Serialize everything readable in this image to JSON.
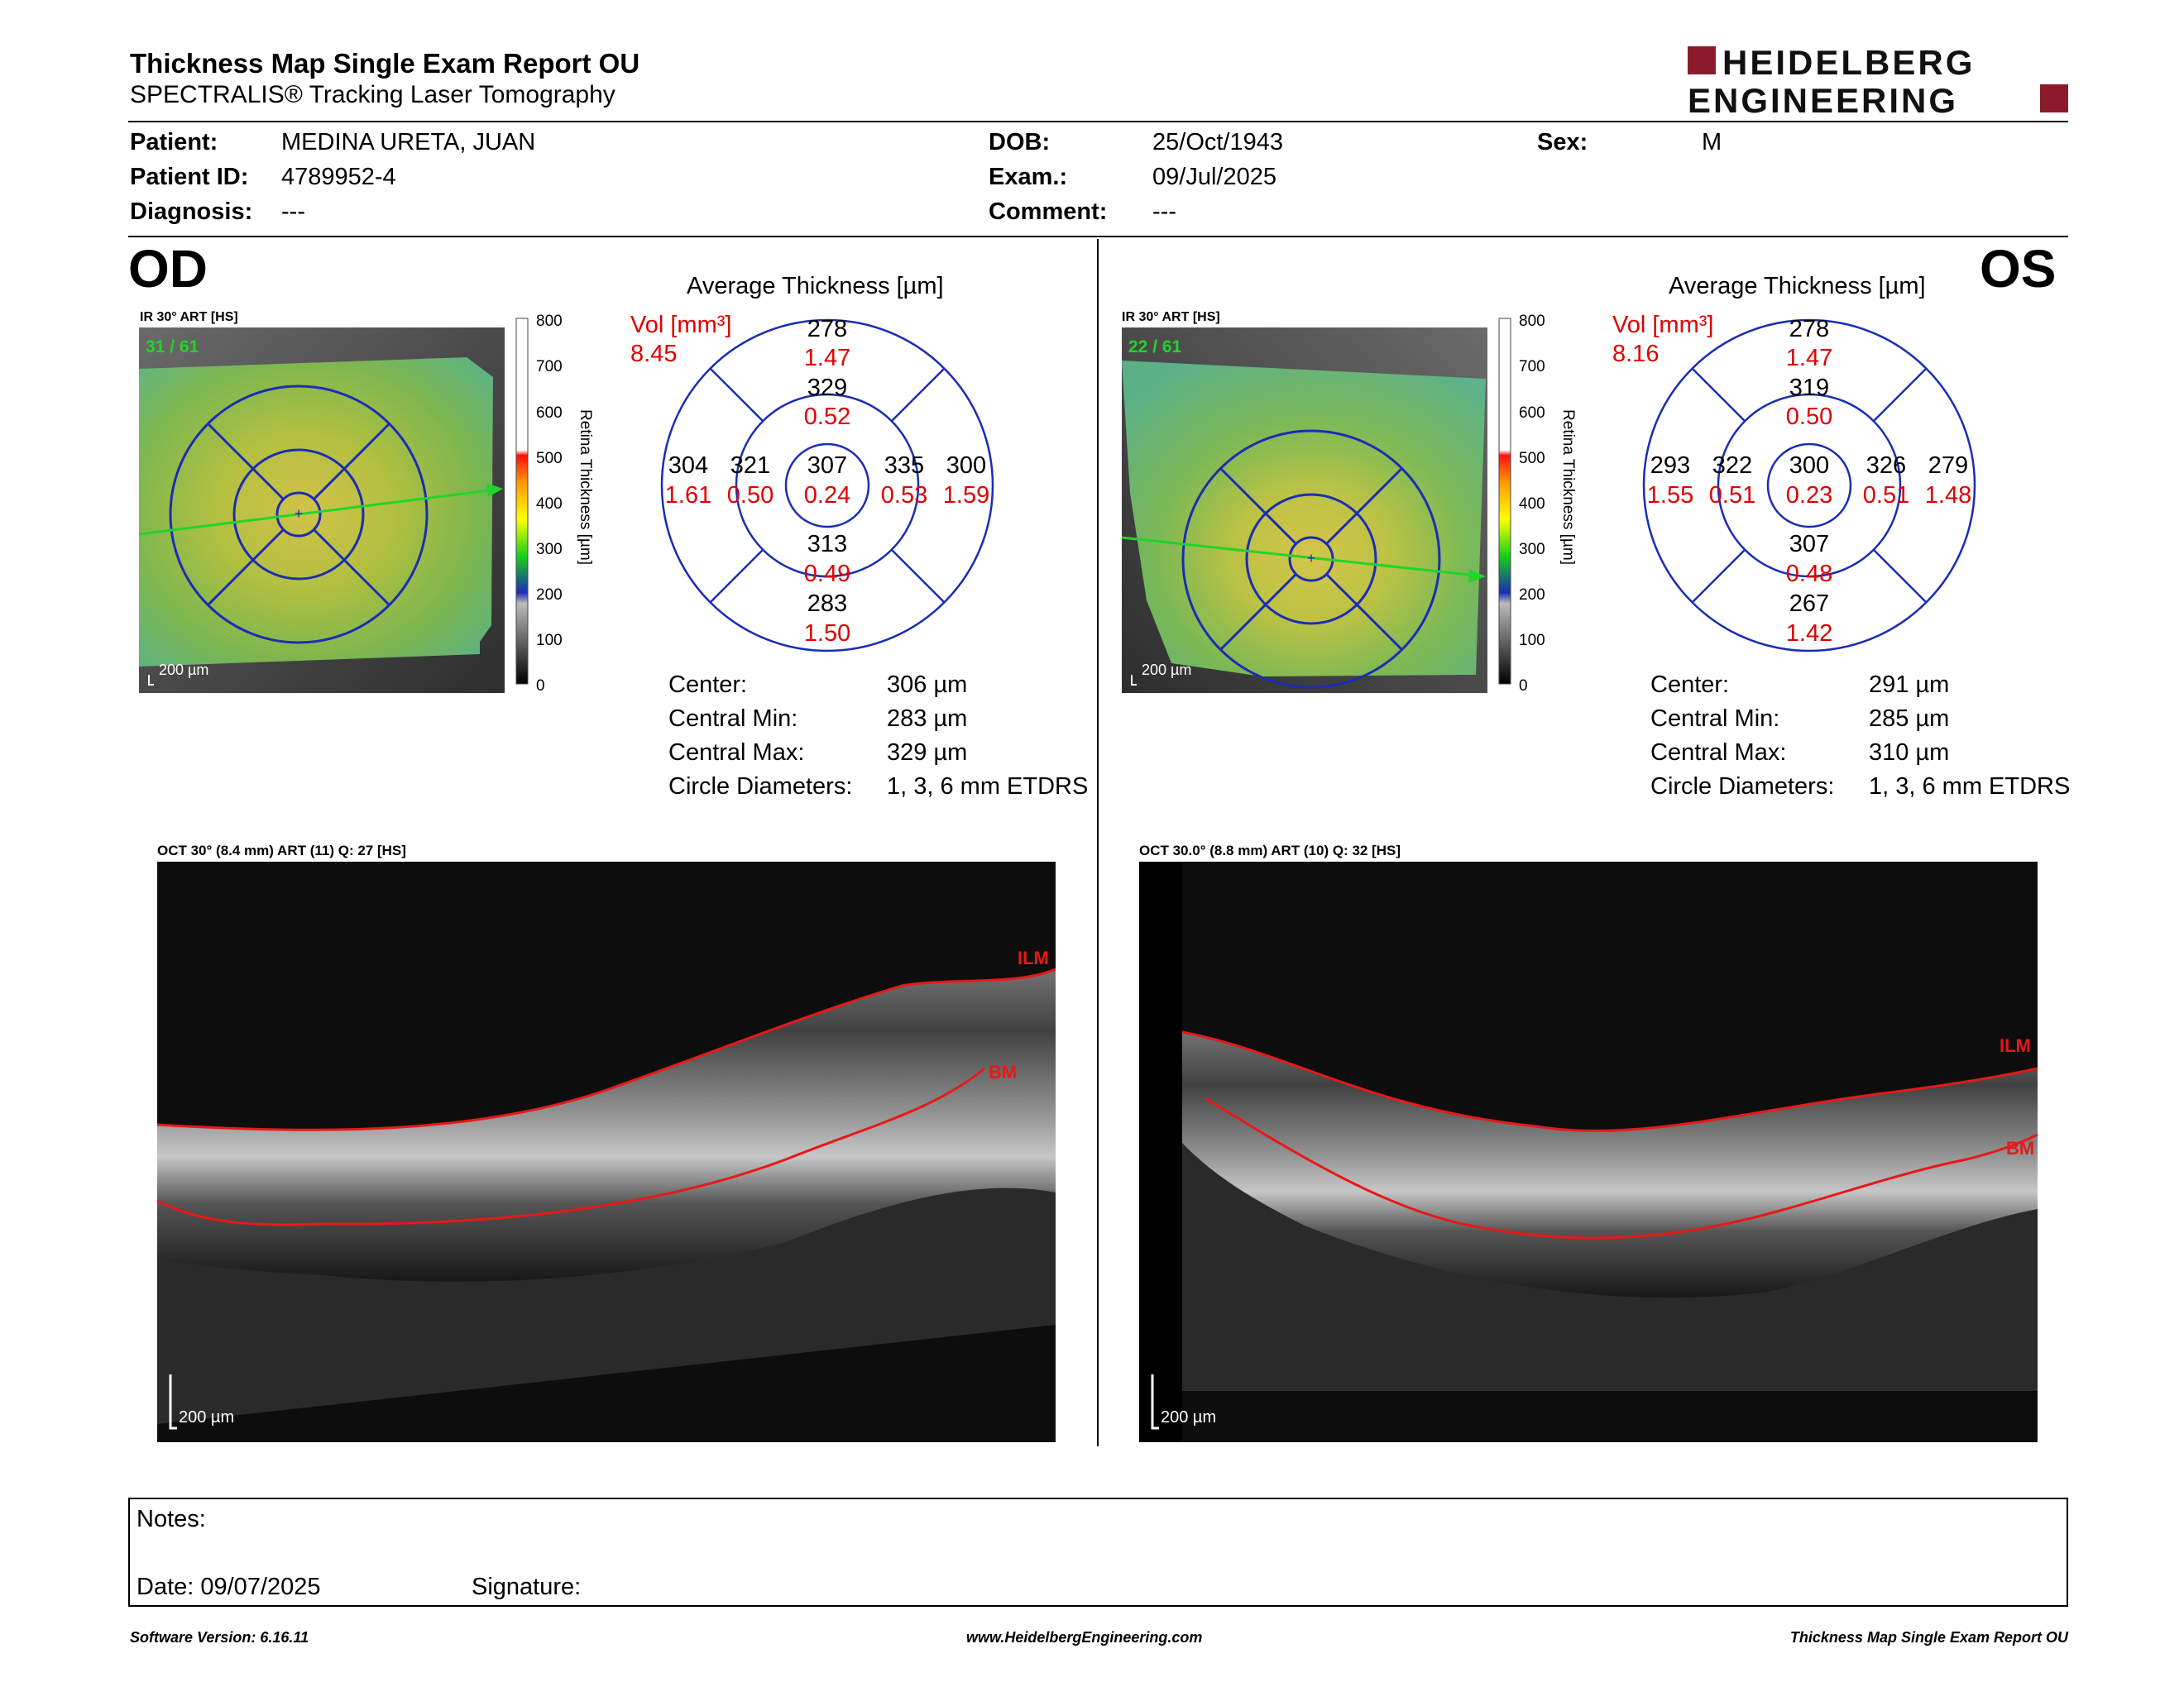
{
  "header": {
    "title": "Thickness Map Single Exam Report OU",
    "subtitle": "SPECTRALIS® Tracking Laser Tomography",
    "logo_line1": "HEIDELBERG",
    "logo_line2": "ENGINEERING",
    "brand_color": "#8b1a2b"
  },
  "patient": {
    "patient_label": "Patient:",
    "patient_value": "MEDINA URETA, JUAN",
    "id_label": "Patient ID:",
    "id_value": "4789952-4",
    "diagnosis_label": "Diagnosis:",
    "diagnosis_value": "---",
    "dob_label": "DOB:",
    "dob_value": "25/Oct/1943",
    "exam_label": "Exam.:",
    "exam_value": "09/Jul/2025",
    "comment_label": "Comment:",
    "comment_value": "---",
    "sex_label": "Sex:",
    "sex_value": "M"
  },
  "scale_labels": [
    "800",
    "700",
    "600",
    "500",
    "400",
    "300",
    "200",
    "100",
    "0"
  ],
  "scale_title": "Retina Thickness [µm]",
  "avg_title": "Average Thickness [µm]",
  "vol_label": "Vol [mm³]",
  "stats_labels": {
    "center": "Center:",
    "min": "Central Min:",
    "max": "Central Max:",
    "diam": "Circle Diameters:"
  },
  "od": {
    "eye": "OD",
    "ir_label": "IR 30° ART [HS]",
    "frame": "31 / 61",
    "scale_bar": "200 µm",
    "vol_total": "8.45",
    "sectors": {
      "outer_sup": {
        "t": "278",
        "v": "1.47"
      },
      "inner_sup": {
        "t": "329",
        "v": "0.52"
      },
      "outer_temp": {
        "t": "304",
        "v": "1.61"
      },
      "inner_temp": {
        "t": "321",
        "v": "0.50"
      },
      "center": {
        "t": "307",
        "v": "0.24"
      },
      "inner_nas": {
        "t": "335",
        "v": "0.53"
      },
      "outer_nas": {
        "t": "300",
        "v": "1.59"
      },
      "inner_inf": {
        "t": "313",
        "v": "0.49"
      },
      "outer_inf": {
        "t": "283",
        "v": "1.50"
      }
    },
    "stats": {
      "center": "306 µm",
      "min": "283 µm",
      "max": "329 µm",
      "diam": "1, 3, 6 mm ETDRS"
    },
    "oct_label": "OCT 30° (8.4 mm) ART (11) Q: 27 [HS]",
    "ilm": "ILM",
    "bm": "BM",
    "oct_scale": "200 µm"
  },
  "os": {
    "eye": "OS",
    "ir_label": "IR 30° ART [HS]",
    "frame": "22 / 61",
    "scale_bar": "200 µm",
    "vol_total": "8.16",
    "sectors": {
      "outer_sup": {
        "t": "278",
        "v": "1.47"
      },
      "inner_sup": {
        "t": "319",
        "v": "0.50"
      },
      "outer_temp": {
        "t": "293",
        "v": "1.55"
      },
      "inner_temp": {
        "t": "322",
        "v": "0.51"
      },
      "center": {
        "t": "300",
        "v": "0.23"
      },
      "inner_nas": {
        "t": "326",
        "v": "0.51"
      },
      "outer_nas": {
        "t": "279",
        "v": "1.48"
      },
      "inner_inf": {
        "t": "307",
        "v": "0.48"
      },
      "outer_inf": {
        "t": "267",
        "v": "1.42"
      }
    },
    "stats": {
      "center": "291 µm",
      "min": "285 µm",
      "max": "310 µm",
      "diam": "1, 3, 6 mm ETDRS"
    },
    "oct_label": "OCT 30.0° (8.8 mm) ART (10) Q: 32 [HS]",
    "ilm": "ILM",
    "bm": "BM",
    "oct_scale": "200 µm"
  },
  "notes": {
    "notes_label": "Notes:",
    "date_label": "Date: 09/07/2025",
    "signature_label": "Signature:"
  },
  "footer": {
    "version": "Software Version: 6.16.11",
    "url": "www.HeidelbergEngineering.com",
    "report": "Thickness Map Single Exam Report OU"
  }
}
